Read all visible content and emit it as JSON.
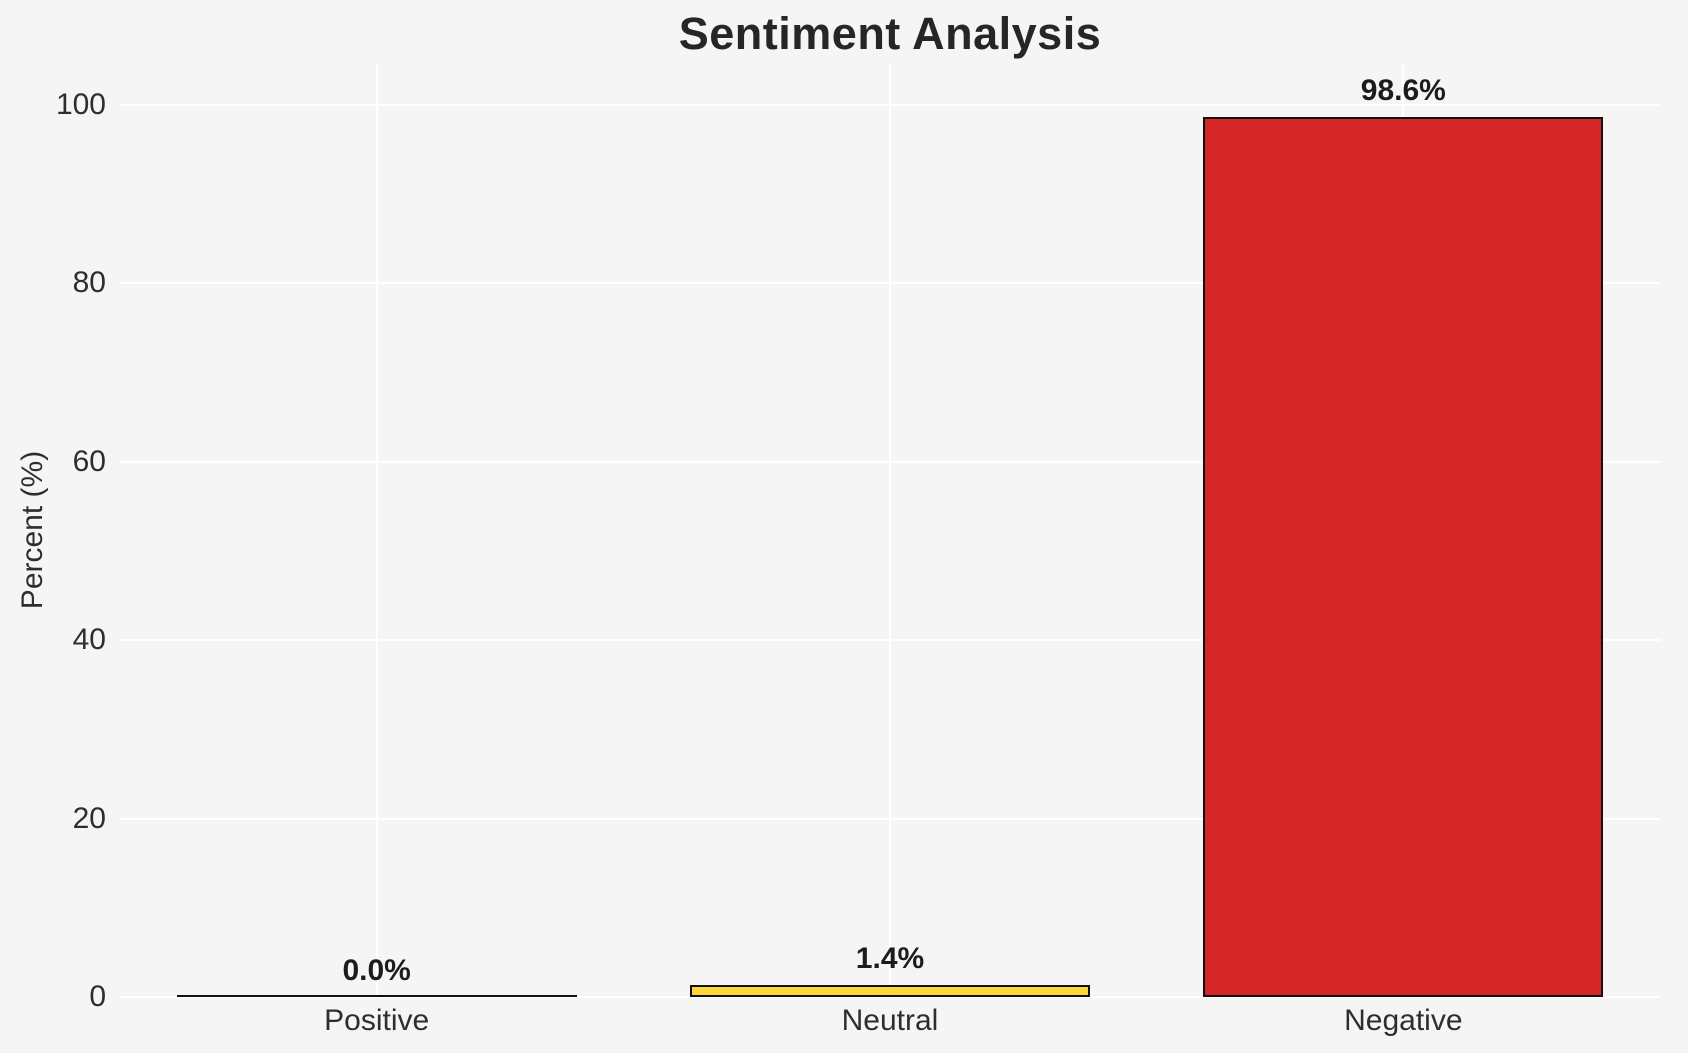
{
  "title": "Sentiment Analysis",
  "chart_data": {
    "type": "bar",
    "title": "Sentiment Analysis",
    "categories": [
      "Positive",
      "Neutral",
      "Negative"
    ],
    "values": [
      0.0,
      1.4,
      98.6
    ],
    "bar_labels": [
      "0.0%",
      "1.4%",
      "98.6%"
    ],
    "bar_colors": [
      null,
      "#fbd737",
      "#d62728"
    ],
    "bar_edge_color": "#111111",
    "xlabel": "",
    "ylabel": "Percent (%)",
    "ylim": [
      0,
      105
    ],
    "yticks": [
      0,
      20,
      40,
      60,
      80,
      100
    ],
    "grid": true,
    "grid_color": "#ffffff",
    "background_color": "#f5f5f5",
    "legend_position": "none"
  }
}
